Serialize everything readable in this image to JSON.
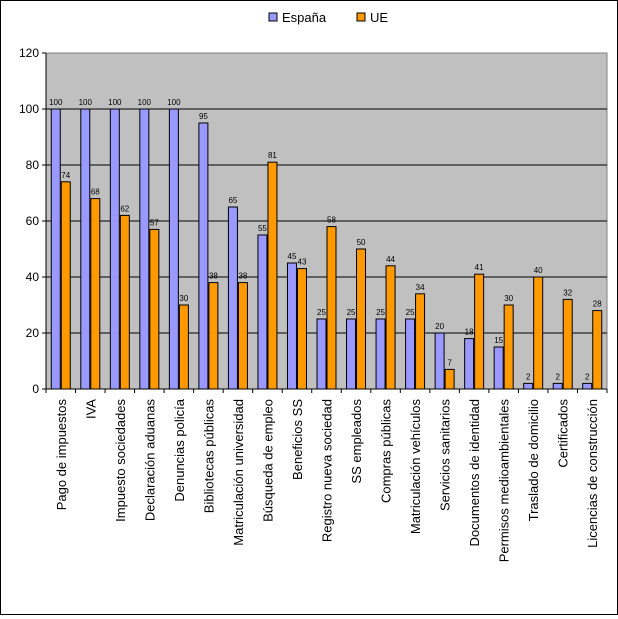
{
  "chart_data": {
    "type": "bar",
    "categories": [
      "Pago de impuestos",
      "IVA",
      "Impuesto sociedades",
      "Declaración aduanas",
      "Denuncias policía",
      "Bibliotecas públicas",
      "Matriculación universidad",
      "Búsqueda de empleo",
      "Beneficios SS",
      "Registro nueva sociedad",
      "SS empleados",
      "Compras públicas",
      "Matriculación vehículos",
      "Servicios sanitarios",
      "Documentos de identidad",
      "Permisos medioambientales",
      "Traslado de domicilio",
      "Certificados",
      "Licencias de construcción"
    ],
    "series": [
      {
        "name": "España",
        "color": "#9999ff",
        "values": [
          100,
          100,
          100,
          100,
          100,
          95,
          65,
          55,
          45,
          25,
          25,
          25,
          25,
          20,
          18,
          15,
          2,
          2,
          2
        ]
      },
      {
        "name": "UE",
        "color": "#ff9900",
        "values": [
          74,
          68,
          62,
          57,
          30,
          38,
          38,
          81,
          43,
          58,
          50,
          44,
          34,
          7,
          41,
          30,
          40,
          32,
          28
        ]
      }
    ],
    "y_ticks": [
      "0",
      "20",
      "40",
      "60",
      "80",
      "100",
      "120"
    ],
    "ylim": [
      0,
      120
    ],
    "grid": true,
    "plot_background": "#c0c0c0",
    "legend_position": "top-center",
    "title": "",
    "xlabel": "",
    "ylabel": ""
  }
}
